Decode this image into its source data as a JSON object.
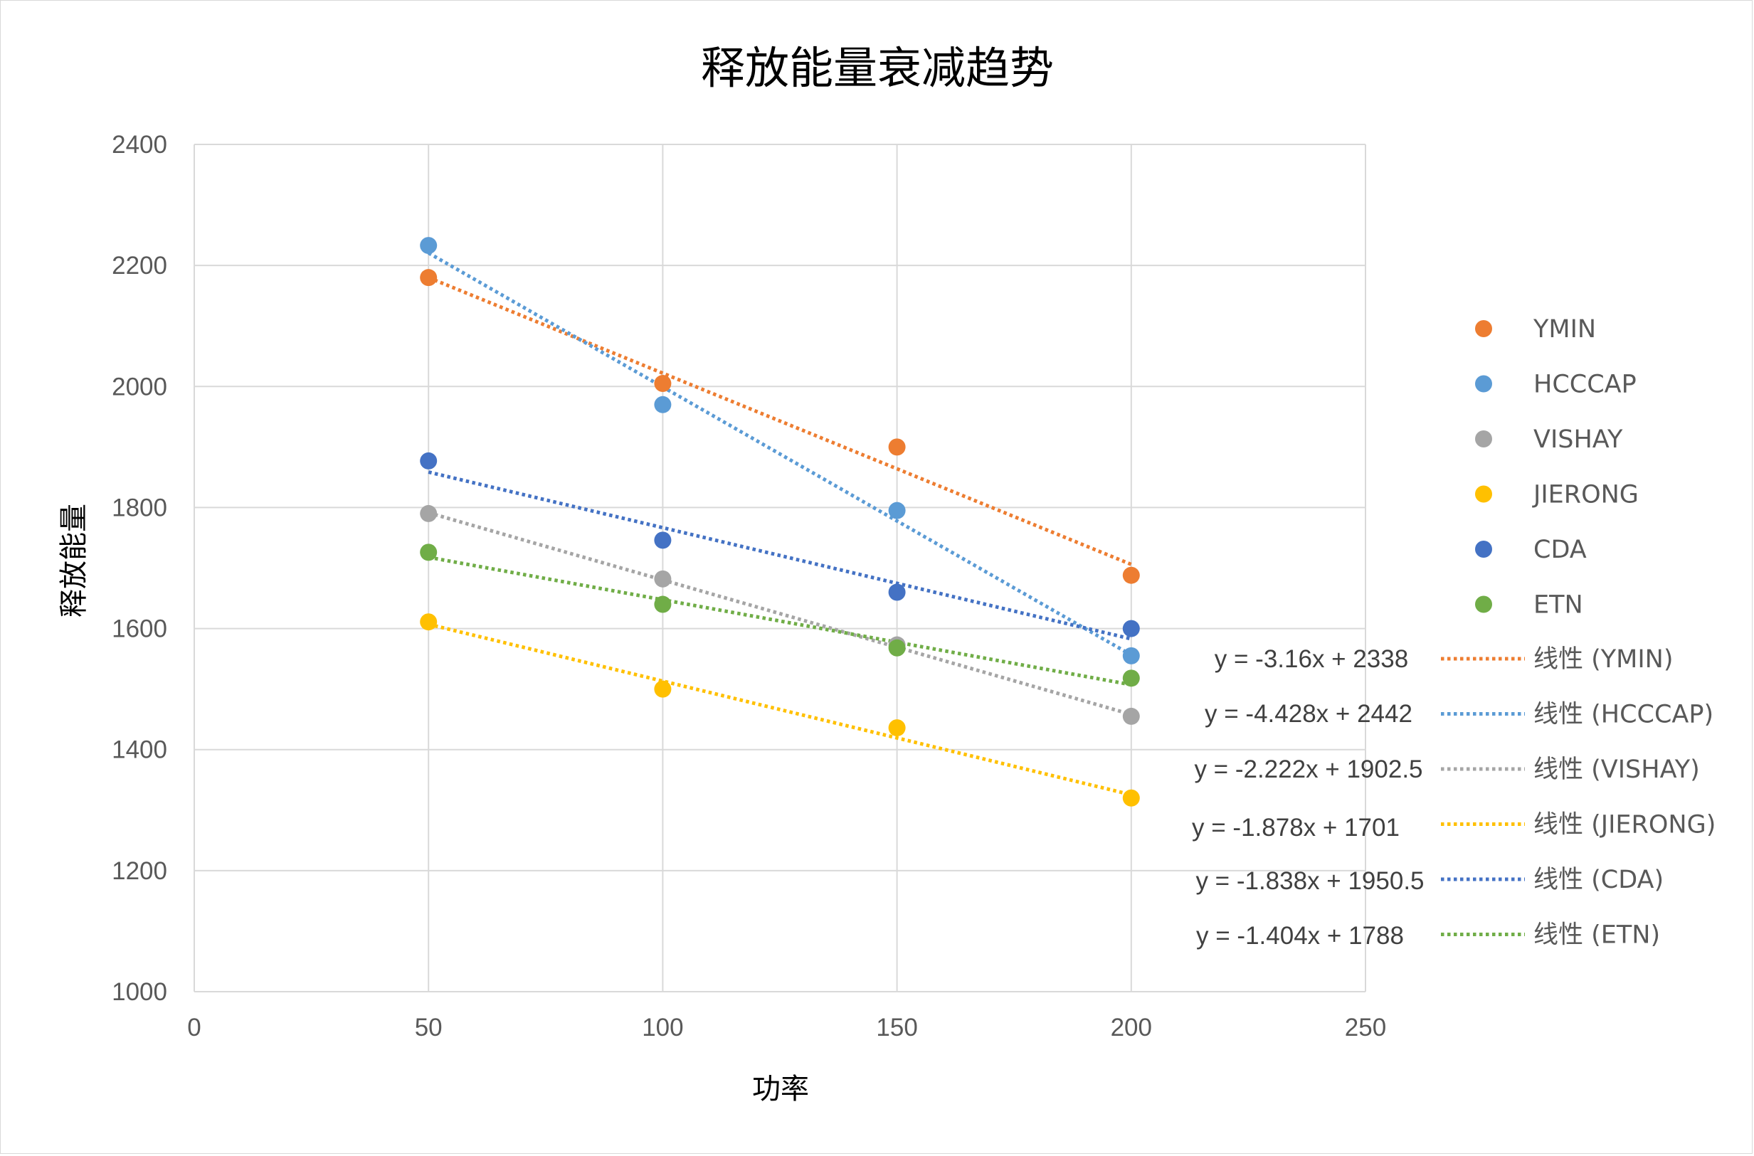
{
  "chart_data": {
    "type": "scatter",
    "title": "释放能量衰减趋势",
    "xlabel": "功率",
    "ylabel": "释放能量",
    "xlim": [
      0,
      250
    ],
    "ylim": [
      1000,
      2400
    ],
    "x_ticks": [
      "0",
      "50",
      "100",
      "150",
      "200",
      "250"
    ],
    "y_ticks": [
      "1000",
      "1200",
      "1400",
      "1600",
      "1800",
      "2000",
      "2200",
      "2400"
    ],
    "grid": true,
    "legend_position": "right",
    "x": [
      50,
      100,
      150,
      200
    ],
    "series": [
      {
        "name": "YMIN",
        "color": "#ED7D31",
        "values": [
          2180,
          2005,
          1900,
          1688
        ],
        "trend_label": "线性 (YMIN)",
        "equation": "y = -3.16x + 2338",
        "slope": -3.16,
        "intercept": 2338
      },
      {
        "name": "HCCCAP",
        "color": "#5B9BD5",
        "values": [
          2233,
          1970,
          1795,
          1555
        ],
        "trend_label": "线性 (HCCCAP)",
        "equation": "y = -4.428x + 2442",
        "slope": -4.428,
        "intercept": 2442
      },
      {
        "name": "VISHAY",
        "color": "#A5A5A5",
        "values": [
          1790,
          1682,
          1573,
          1455
        ],
        "trend_label": "线性 (VISHAY)",
        "equation": "y = -2.222x + 1902.5",
        "slope": -2.222,
        "intercept": 1902.5
      },
      {
        "name": "JIERONG",
        "color": "#FFC000",
        "values": [
          1611,
          1500,
          1436,
          1320
        ],
        "trend_label": "线性 (JIERONG)",
        "equation": "y = -1.878x + 1701",
        "slope": -1.878,
        "intercept": 1701
      },
      {
        "name": "CDA",
        "color": "#4472C4",
        "values": [
          1877,
          1746,
          1660,
          1600
        ],
        "trend_label": "线性 (CDA)",
        "equation": "y = -1.838x + 1950.5",
        "slope": -1.838,
        "intercept": 1950.5
      },
      {
        "name": "ETN",
        "color": "#70AD47",
        "values": [
          1726,
          1640,
          1568,
          1518
        ],
        "trend_label": "线性 (ETN)",
        "equation": "y = -1.404x + 1788",
        "slope": -1.404,
        "intercept": 1788
      }
    ]
  }
}
